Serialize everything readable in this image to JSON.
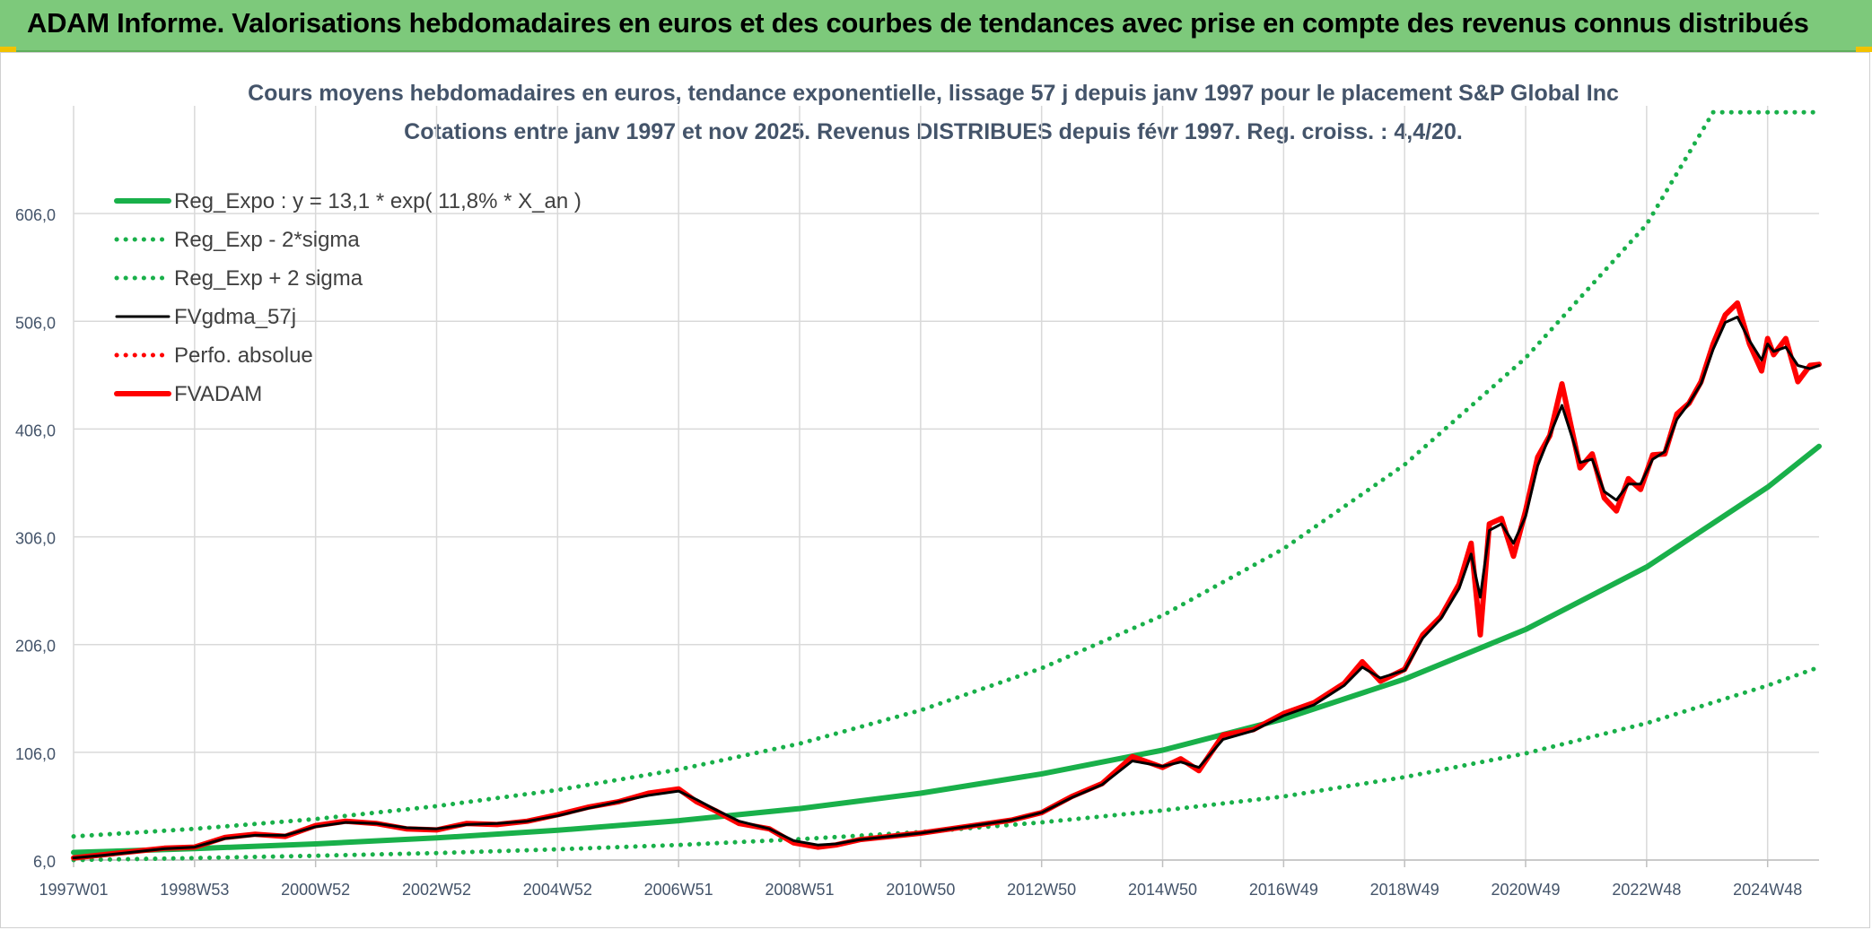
{
  "banner": {
    "title": "ADAM Informe. Valorisations hebdomadaires en euros et des courbes de tendances avec prise en compte des revenus connus distribués"
  },
  "colors": {
    "banner_bg": "#7dc97b",
    "trend_green": "#19b04a",
    "smoothed_black": "#000000",
    "price_red": "#ff0000",
    "grid": "#d9d9d9",
    "axis_text": "#44546a"
  },
  "chart_data": {
    "type": "line",
    "title": "Cours moyens hebdomadaires en euros, tendance exponentielle, lissage 57 j depuis janv 1997 pour le placement S&P Global Inc",
    "subtitle": "Cotations entre janv 1997 et nov 2025. Revenus DISTRIBUES depuis févr 1997. Reg. croiss. : 4,4/20.",
    "xlabel": "",
    "ylabel": "",
    "x_range_years": [
      1997.0,
      2025.85
    ],
    "ylim": [
      6,
      706
    ],
    "y_ticks": [
      "6,0",
      "106,0",
      "206,0",
      "306,0",
      "406,0",
      "506,0",
      "606,0"
    ],
    "y_tick_values": [
      6,
      106,
      206,
      306,
      406,
      506,
      606
    ],
    "x_ticks": [
      {
        "label": "1997W01",
        "year": 1997.0
      },
      {
        "label": "1998W53",
        "year": 1999.0
      },
      {
        "label": "2000W52",
        "year": 2001.0
      },
      {
        "label": "2002W52",
        "year": 2003.0
      },
      {
        "label": "2004W52",
        "year": 2005.0
      },
      {
        "label": "2006W51",
        "year": 2007.0
      },
      {
        "label": "2008W51",
        "year": 2009.0
      },
      {
        "label": "2010W50",
        "year": 2011.0
      },
      {
        "label": "2012W50",
        "year": 2013.0
      },
      {
        "label": "2014W50",
        "year": 2015.0
      },
      {
        "label": "2016W49",
        "year": 2017.0
      },
      {
        "label": "2018W49",
        "year": 2019.0
      },
      {
        "label": "2020W49",
        "year": 2021.0
      },
      {
        "label": "2022W48",
        "year": 2023.0
      },
      {
        "label": "2024W48",
        "year": 2025.0
      }
    ],
    "grid": true,
    "legend_position": "top-left",
    "legend": [
      {
        "label": "Reg_Expo : y = 13,1 * exp( 11,8% *  X_an )",
        "style": "solid-thick",
        "color": "#19b04a"
      },
      {
        "label": "Reg_Exp - 2*sigma",
        "style": "dotted",
        "color": "#19b04a"
      },
      {
        "label": "Reg_Exp + 2 sigma",
        "style": "dotted",
        "color": "#19b04a"
      },
      {
        "label": "FVgdma_57j",
        "style": "solid",
        "color": "#000000"
      },
      {
        "label": "Perfo. absolue",
        "style": "dotted",
        "color": "#ff0000"
      },
      {
        "label": "FVADAM",
        "style": "solid-thick",
        "color": "#ff0000"
      }
    ],
    "series": [
      {
        "name": "Reg_Expo : y = 13,1 * exp( 11,8% *  X_an )",
        "style": "solid-thick",
        "color": "#19b04a",
        "x": [
          1997,
          1999,
          2001,
          2003,
          2005,
          2007,
          2009,
          2011,
          2013,
          2015,
          2017,
          2019,
          2021,
          2023,
          2025,
          2025.85
        ],
        "y": [
          13.1,
          16.6,
          21,
          26.6,
          33.6,
          42.5,
          53.8,
          68,
          86,
          108,
          137,
          174,
          220,
          278,
          352,
          390
        ]
      },
      {
        "name": "Reg_Exp + 2 sigma",
        "style": "dotted",
        "color": "#19b04a",
        "x": [
          1997,
          1999,
          2001,
          2003,
          2005,
          2007,
          2009,
          2011,
          2013,
          2015,
          2017,
          2019,
          2021,
          2023,
          2024.1,
          2025.85
        ],
        "y": [
          28,
          35,
          44,
          56,
          71,
          90,
          114,
          145,
          184,
          233,
          295,
          373,
          472,
          596,
          700,
          700
        ]
      },
      {
        "name": "Reg_Exp - 2*sigma",
        "style": "dotted",
        "color": "#19b04a",
        "x": [
          1997,
          1999,
          2001,
          2003,
          2005,
          2007,
          2009,
          2011,
          2013,
          2015,
          2017,
          2019,
          2021,
          2023,
          2025,
          2025.85
        ],
        "y": [
          6,
          7.8,
          10,
          12.5,
          16,
          20,
          25.4,
          32,
          41,
          52,
          65,
          83,
          105,
          133,
          168,
          185
        ]
      },
      {
        "name": "FVADAM",
        "style": "solid-thick",
        "color": "#ff0000",
        "x": [
          1997,
          1997.5,
          1998,
          1998.5,
          1999,
          1999.5,
          2000,
          2000.5,
          2001,
          2001.5,
          2002,
          2002.5,
          2003,
          2003.5,
          2004,
          2004.5,
          2005,
          2005.5,
          2006,
          2006.5,
          2007,
          2007.3,
          2007.6,
          2008,
          2008.5,
          2008.9,
          2009.3,
          2009.6,
          2010,
          2010.5,
          2011,
          2011.5,
          2012,
          2012.5,
          2013,
          2013.5,
          2014,
          2014.5,
          2015,
          2015.3,
          2015.6,
          2016,
          2016.5,
          2017,
          2017.5,
          2018,
          2018.3,
          2018.6,
          2019,
          2019.3,
          2019.6,
          2019.9,
          2020.1,
          2020.25,
          2020.4,
          2020.6,
          2020.8,
          2021,
          2021.2,
          2021.4,
          2021.6,
          2021.9,
          2022.1,
          2022.3,
          2022.5,
          2022.7,
          2022.9,
          2023.1,
          2023.3,
          2023.5,
          2023.7,
          2023.9,
          2024.1,
          2024.3,
          2024.5,
          2024.7,
          2024.9,
          2025.0,
          2025.1,
          2025.3,
          2025.5,
          2025.7,
          2025.85
        ],
        "y": [
          8,
          11,
          14,
          17,
          18,
          27,
          30,
          28,
          38,
          42,
          40,
          35,
          34,
          40,
          39,
          42,
          48,
          55,
          60,
          68,
          72,
          60,
          52,
          40,
          35,
          22,
          18,
          20,
          25,
          28,
          31,
          35,
          39,
          43,
          50,
          65,
          77,
          102,
          92,
          100,
          89,
          122,
          127,
          142,
          152,
          170,
          190,
          172,
          183,
          215,
          232,
          262,
          300,
          215,
          318,
          323,
          288,
          330,
          380,
          400,
          448,
          370,
          383,
          342,
          330,
          360,
          350,
          382,
          383,
          420,
          430,
          450,
          485,
          512,
          523,
          485,
          460,
          490,
          475,
          490,
          450,
          465,
          466
        ]
      },
      {
        "name": "FVgdma_57j",
        "style": "solid",
        "color": "#000000",
        "x": [
          1997,
          1997.5,
          1998,
          1998.5,
          1999,
          1999.5,
          2000,
          2000.5,
          2001,
          2001.5,
          2002,
          2002.5,
          2003,
          2003.5,
          2004,
          2004.5,
          2005,
          2005.5,
          2006,
          2006.5,
          2007,
          2007.3,
          2007.6,
          2008,
          2008.5,
          2008.9,
          2009.3,
          2009.6,
          2010,
          2010.5,
          2011,
          2011.5,
          2012,
          2012.5,
          2013,
          2013.5,
          2014,
          2014.5,
          2015,
          2015.3,
          2015.6,
          2016,
          2016.5,
          2017,
          2017.5,
          2018,
          2018.3,
          2018.6,
          2019,
          2019.3,
          2019.6,
          2019.9,
          2020.1,
          2020.25,
          2020.4,
          2020.6,
          2020.8,
          2021,
          2021.2,
          2021.4,
          2021.6,
          2021.9,
          2022.1,
          2022.3,
          2022.5,
          2022.7,
          2022.9,
          2023.1,
          2023.3,
          2023.5,
          2023.7,
          2023.9,
          2024.1,
          2024.3,
          2024.5,
          2024.7,
          2024.9,
          2025.0,
          2025.1,
          2025.3,
          2025.5,
          2025.7,
          2025.85
        ],
        "y": [
          8,
          10.5,
          13.5,
          16.5,
          18,
          26,
          29,
          29,
          37,
          41,
          40,
          36,
          35,
          39,
          40,
          42,
          47,
          54,
          60,
          66,
          70,
          62,
          53,
          42,
          35,
          24,
          20,
          21,
          25,
          28,
          31,
          35,
          39,
          43,
          50,
          64,
          76,
          98,
          93,
          97,
          92,
          118,
          126,
          140,
          150,
          168,
          185,
          175,
          182,
          212,
          230,
          258,
          290,
          250,
          312,
          318,
          300,
          325,
          372,
          400,
          428,
          375,
          378,
          348,
          340,
          355,
          355,
          378,
          385,
          415,
          430,
          448,
          480,
          505,
          510,
          488,
          470,
          485,
          478,
          482,
          465,
          462,
          465
        ]
      }
    ]
  }
}
